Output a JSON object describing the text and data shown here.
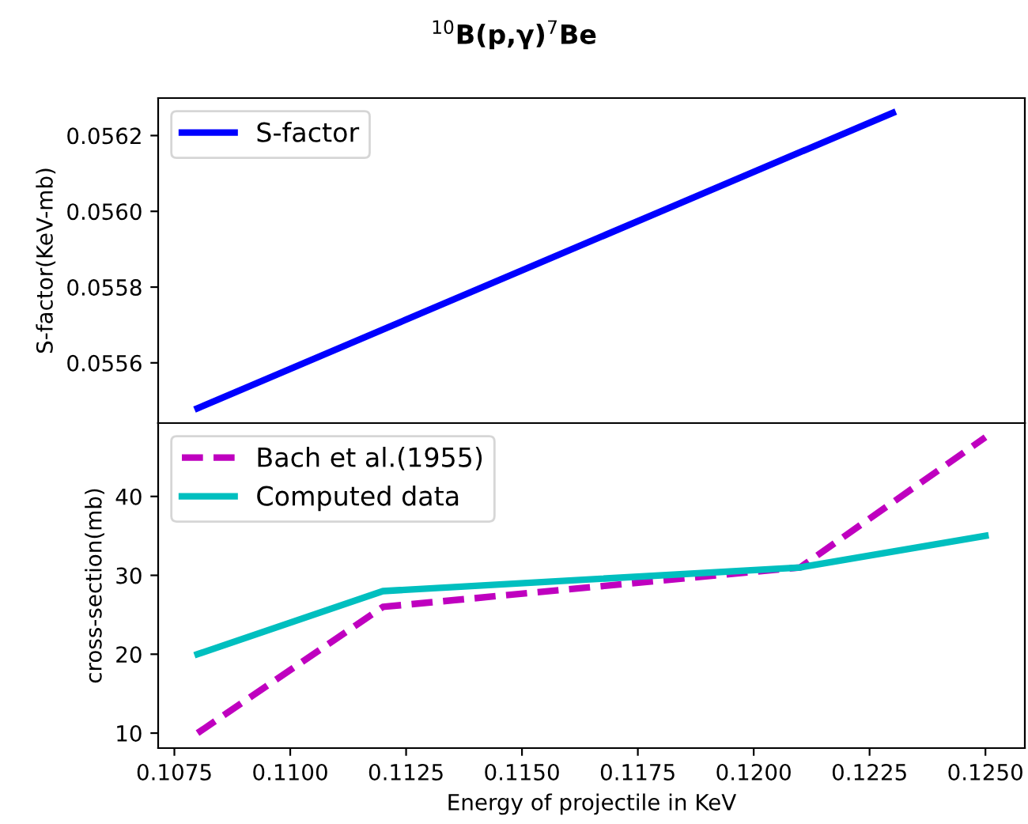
{
  "chart_data": [
    {
      "type": "line",
      "title": "$^{10}$B(p,γ)$^{7}$Be",
      "ylabel": "S-factor(KeV-mb)",
      "x": [
        0.108,
        0.123
      ],
      "legend": "top left",
      "tick_labels": "y",
      "series": [
        {
          "name": "S-factor",
          "color": "#0000ff",
          "values": [
            0.05548,
            0.05626
          ],
          "line_style": "solid"
        }
      ],
      "xlim": [
        0.10715,
        0.12585
      ],
      "ylim": [
        0.055441,
        0.056299
      ],
      "yticks": [
        0.0556,
        0.0558,
        {
          "value": 0.056,
          "label": "0.0560"
        },
        0.0562
      ]
    },
    {
      "type": "line",
      "xlabel": "Energy of projectile in KeV",
      "ylabel": "cross-section(mb)",
      "x": [
        0.108,
        0.112,
        0.121,
        0.125
      ],
      "legend": "top left",
      "series": [
        {
          "name": "Bach et al.(1955)",
          "color": "#bf00bf",
          "values": [
            10,
            26,
            31,
            47.5
          ],
          "line_style": "dashed"
        },
        {
          "name": "Computed data",
          "color": "#00bfbf",
          "values": [
            20,
            28,
            31,
            35
          ],
          "line_style": "solid"
        }
      ],
      "xlim": [
        0.10715,
        0.12585
      ],
      "xticks": [
        {
          "value": 0.1075,
          "label": "0.1075"
        },
        {
          "value": 0.11,
          "label": "0.1100"
        },
        {
          "value": 0.1125,
          "label": "0.1125"
        },
        {
          "value": 0.115,
          "label": "0.1150"
        },
        {
          "value": 0.1175,
          "label": "0.1175"
        },
        {
          "value": 0.12,
          "label": "0.1200"
        },
        {
          "value": 0.1225,
          "label": "0.1225"
        },
        {
          "value": 0.125,
          "label": "0.1250"
        }
      ],
      "ylim": [
        8.1,
        49.3
      ],
      "yticks": [
        10,
        20,
        30,
        40
      ]
    }
  ]
}
